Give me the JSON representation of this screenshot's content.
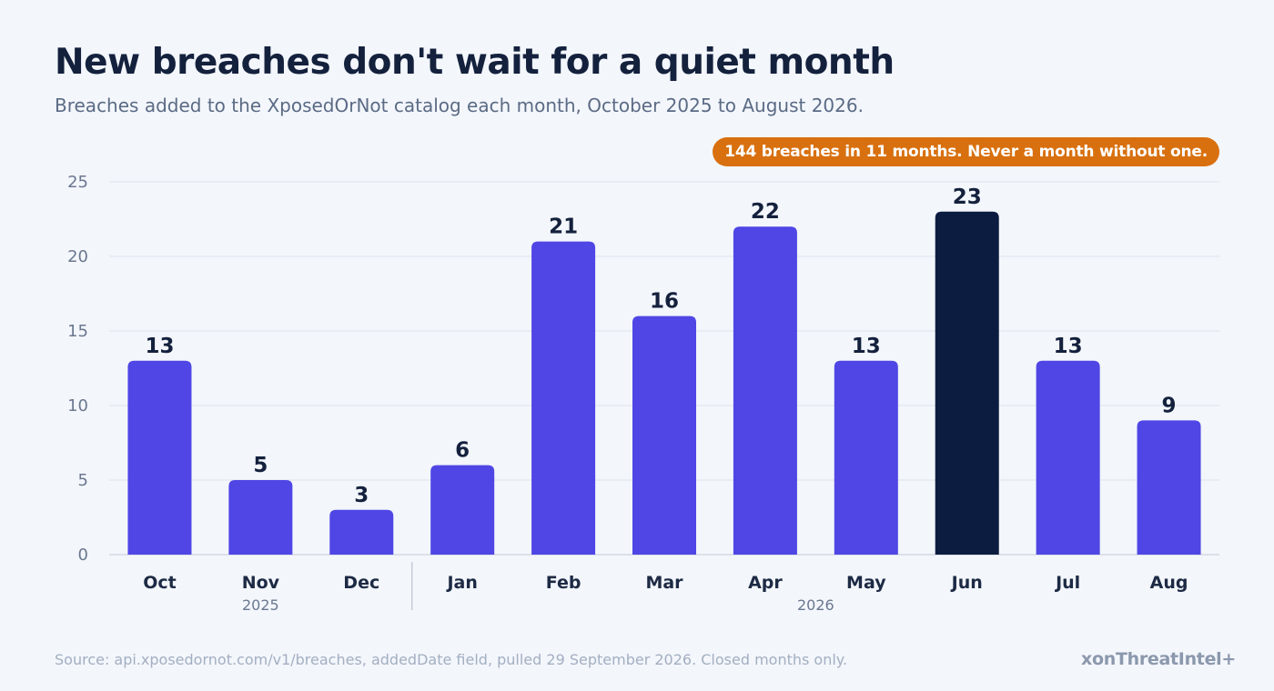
{
  "title": "New breaches don't wait for a quiet month",
  "subtitle": "Breaches added to the XposedOrNot catalog each month, October 2025 to August 2026.",
  "callout": "144 breaches in 11 months. Never a month without one.",
  "source": "Source: api.xposedornot.com/v1/breaches, addedDate field, pulled 29 September 2026. Closed months only.",
  "brand": "xonThreatIntel+",
  "chart_data": {
    "type": "bar",
    "title": "New breaches don't wait for a quiet month",
    "subtitle": "Breaches added to the XposedOrNot catalog each month, October 2025 to August 2026.",
    "categories": [
      "Oct",
      "Nov",
      "Dec",
      "Jan",
      "Feb",
      "Mar",
      "Apr",
      "May",
      "Jun",
      "Jul",
      "Aug"
    ],
    "values": [
      13,
      5,
      3,
      6,
      21,
      16,
      22,
      13,
      23,
      13,
      9
    ],
    "year_groups": [
      {
        "label": "2025",
        "from": "Oct",
        "to": "Dec"
      },
      {
        "label": "2026",
        "from": "Jan",
        "to": "Aug"
      }
    ],
    "ylim": [
      0,
      25
    ],
    "yticks": [
      0,
      5,
      10,
      15,
      20,
      25
    ],
    "grid": true,
    "highlight": "Jun",
    "colors": {
      "bar": "#4f46e5",
      "highlight": "#0c1c40",
      "grid": "#dde3ec"
    },
    "xlabel": "",
    "ylabel": ""
  }
}
